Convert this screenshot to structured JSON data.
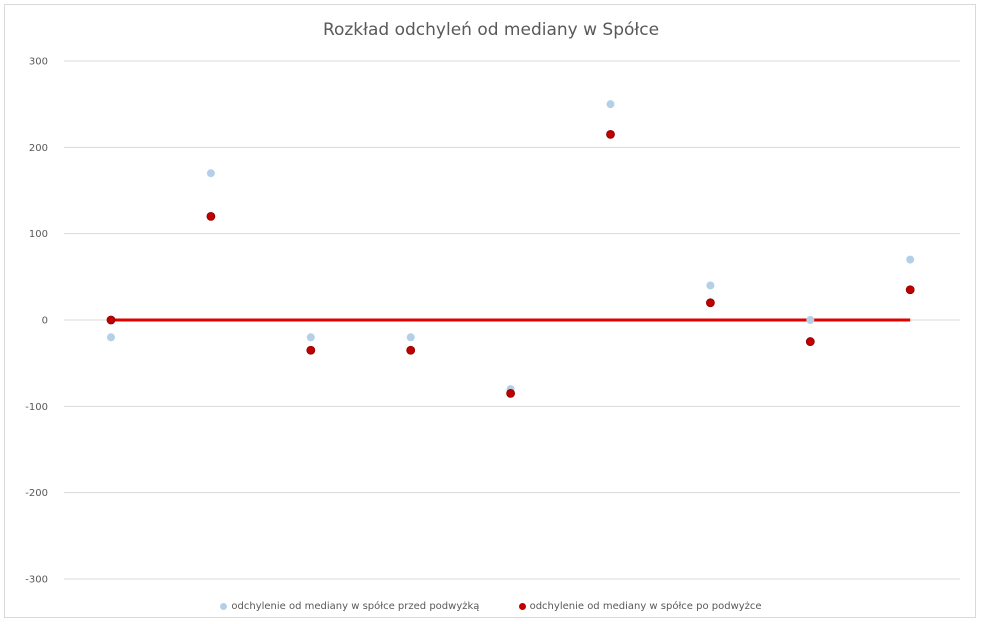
{
  "chart_data": {
    "type": "scatter",
    "title": "Rozkład odchyleń od mediany w Spółce",
    "xlabel": "",
    "ylabel": "",
    "ylim": [
      -300,
      300
    ],
    "yticks": [
      300,
      200,
      100,
      0,
      -100,
      -200,
      -300
    ],
    "grid": true,
    "legend_position": "bottom",
    "x": [
      1,
      2,
      3,
      4,
      5,
      6,
      7,
      8,
      9
    ],
    "series": [
      {
        "name": "odchylenie od mediany w spółce przed podwyżką",
        "color": "#b4cfe8",
        "values": [
          -20,
          170,
          -20,
          -20,
          -80,
          250,
          40,
          0,
          70
        ]
      },
      {
        "name": "odchylenie od mediany w spółce po podwyżce",
        "color": "#c00000",
        "values": [
          0,
          120,
          -35,
          -35,
          -85,
          215,
          20,
          -25,
          35
        ]
      }
    ],
    "reference_line": {
      "y": 0,
      "color": "#e00000"
    }
  }
}
